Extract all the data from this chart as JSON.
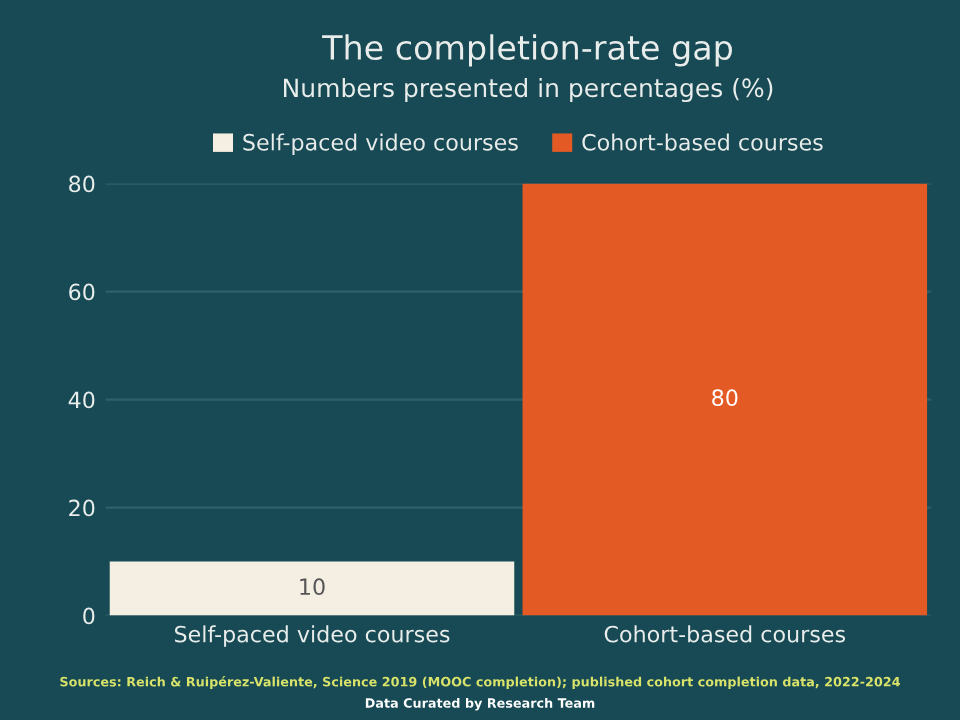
{
  "chart_data": {
    "type": "bar",
    "title": "The completion-rate gap",
    "subtitle": "Numbers presented in percentages (%)",
    "categories": [
      "Self-paced video courses",
      "Cohort-based courses"
    ],
    "series": [
      {
        "name": "Self-paced video courses",
        "color": "#f5efe3",
        "values": [
          10,
          null
        ]
      },
      {
        "name": "Cohort-based courses",
        "color": "#e35a24",
        "values": [
          null,
          80
        ]
      }
    ],
    "ylim": [
      0,
      80
    ],
    "yticks": [
      0,
      20,
      40,
      60,
      80
    ],
    "grid": "y",
    "legend": "top",
    "data_labels": true,
    "annotations": [
      "Sources: Reich & Ruipérez-Valiente, Science 2019 (MOOC completion); published cohort completion data, 2022-2024",
      "Data Curated by Research Team"
    ]
  }
}
